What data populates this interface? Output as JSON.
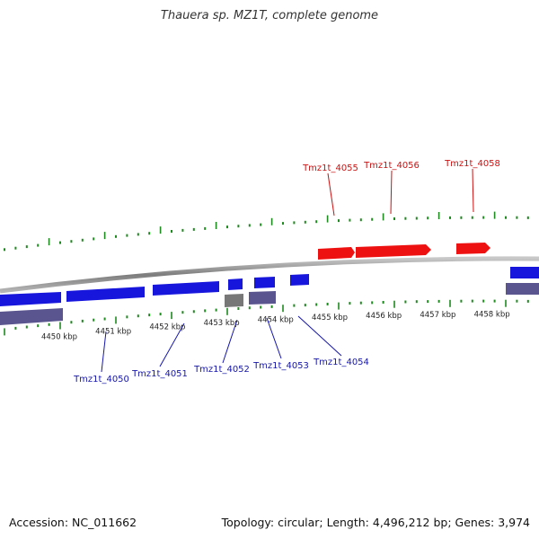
{
  "title": "Thauera sp. MZ1T, complete genome",
  "footer": {
    "accession": "Accession: NC_011662",
    "summary": "Topology: circular; Length: 4,496,212 bp; Genes: 3,974"
  },
  "colors": {
    "backbone": "#8c8c8c",
    "tick": "#1f8a1f",
    "forward_gene": "#ee1111",
    "reverse_gene": "#1616dd",
    "rna_gene": "#5a558e",
    "pseudo_gene": "#777777",
    "forward_label": "#cc1111",
    "reverse_label": "#1616aa"
  },
  "axis": {
    "tick_labels": [
      {
        "kbp": 4450,
        "label": "4450 kbp"
      },
      {
        "kbp": 4451,
        "label": "4451 kbp"
      },
      {
        "kbp": 4452,
        "label": "4452 kbp"
      },
      {
        "kbp": 4453,
        "label": "4453 kbp"
      },
      {
        "kbp": 4454,
        "label": "4454 kbp"
      },
      {
        "kbp": 4455,
        "label": "4455 kbp"
      },
      {
        "kbp": 4456,
        "label": "4456 kbp"
      },
      {
        "kbp": 4457,
        "label": "4457 kbp"
      },
      {
        "kbp": 4458,
        "label": "4458 kbp"
      }
    ]
  },
  "gene_labels": {
    "forward": [
      "Tmz1t_4055",
      "Tmz1t_4056",
      "Tmz1t_4058"
    ],
    "reverse": [
      "Tmz1t_4050",
      "Tmz1t_4051",
      "Tmz1t_4052",
      "Tmz1t_4053",
      "Tmz1t_4054"
    ]
  }
}
